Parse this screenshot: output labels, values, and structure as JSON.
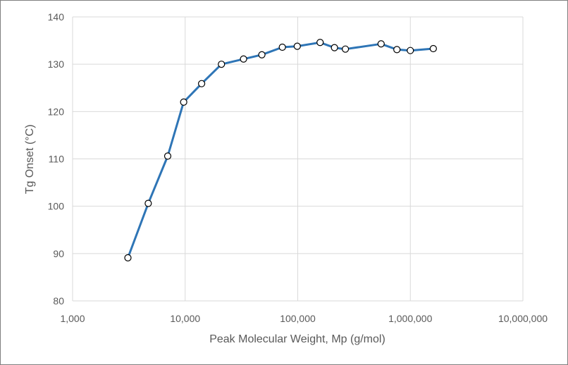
{
  "chart_data": {
    "type": "line",
    "title": "",
    "xlabel": "Peak Molecular Weight, Mp (g/mol)",
    "ylabel": "Tg Onset (°C)",
    "x_scale": "log",
    "xlim": [
      1000,
      10000000
    ],
    "ylim": [
      80,
      140
    ],
    "x_ticks": [
      1000,
      10000,
      100000,
      1000000,
      10000000
    ],
    "x_tick_labels": [
      "1,000",
      "10,000",
      "100,000",
      "1,000,000",
      "10,000,000"
    ],
    "y_ticks": [
      80,
      90,
      100,
      110,
      120,
      130,
      140
    ],
    "y_tick_labels": [
      "80",
      "90",
      "100",
      "110",
      "120",
      "130",
      "140"
    ],
    "grid": true,
    "series": [
      {
        "color": "#2e75b6",
        "marker": "open-circle",
        "x": [
          3100,
          4700,
          7000,
          9700,
          14000,
          21000,
          33000,
          48000,
          73000,
          99000,
          158000,
          212000,
          265000,
          550000,
          760000,
          1000000,
          1600000
        ],
        "y": [
          89.1,
          100.6,
          110.6,
          122.0,
          125.9,
          130.0,
          131.1,
          132.0,
          133.6,
          133.8,
          134.6,
          133.5,
          133.2,
          134.3,
          133.1,
          132.9,
          133.3
        ]
      }
    ]
  }
}
